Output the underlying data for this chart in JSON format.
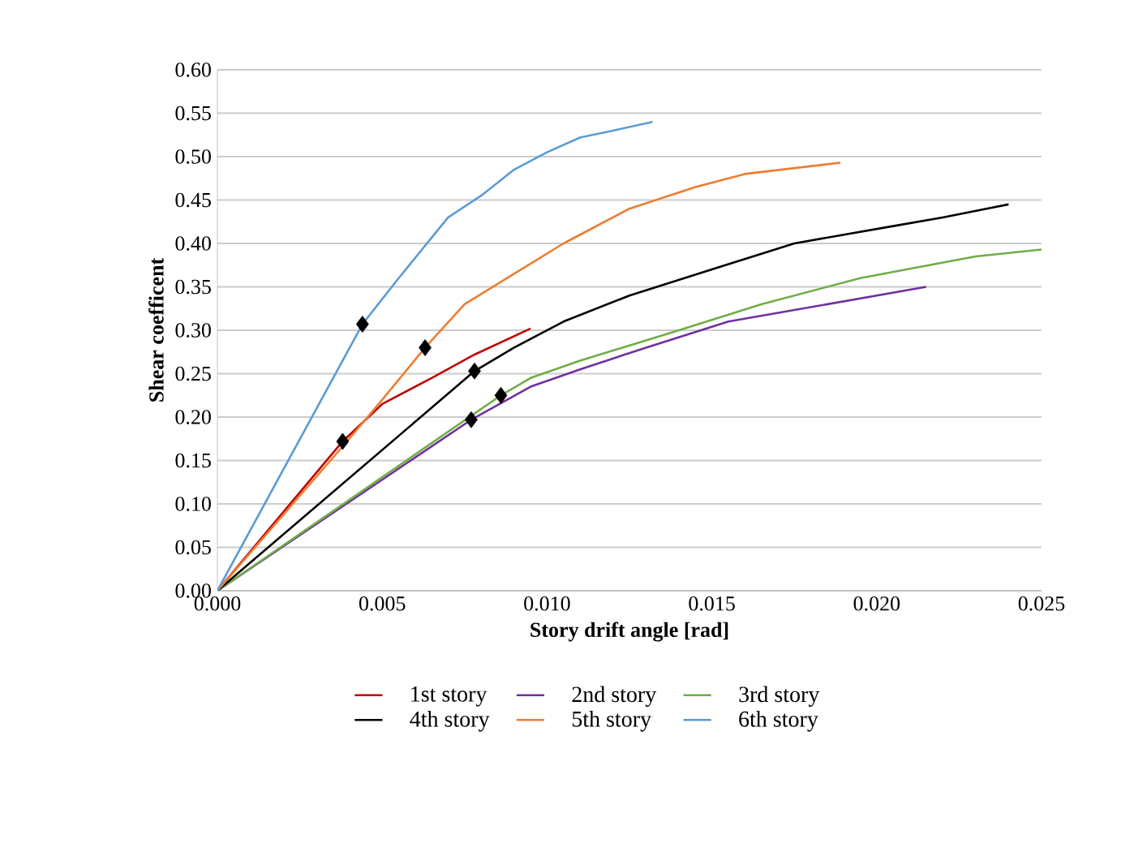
{
  "chart_data": {
    "type": "line",
    "xlabel": "Story drift angle [rad]",
    "ylabel": "Shear coefficent",
    "xlim": [
      0,
      0.025
    ],
    "ylim": [
      0,
      0.6
    ],
    "xticks": [
      {
        "value": 0,
        "label": "0.000"
      },
      {
        "value": 0.005,
        "label": "0.005"
      },
      {
        "value": 0.01,
        "label": "0.010"
      },
      {
        "value": 0.015,
        "label": "0.015"
      },
      {
        "value": 0.02,
        "label": "0.020"
      },
      {
        "value": 0.025,
        "label": "0.025"
      }
    ],
    "yticks": [
      {
        "value": 0,
        "label": "0.00"
      },
      {
        "value": 0.05,
        "label": "0.05"
      },
      {
        "value": 0.1,
        "label": "0.10"
      },
      {
        "value": 0.15,
        "label": "0.15"
      },
      {
        "value": 0.2,
        "label": "0.20"
      },
      {
        "value": 0.25,
        "label": "0.25"
      },
      {
        "value": 0.3,
        "label": "0.30"
      },
      {
        "value": 0.35,
        "label": "0.35"
      },
      {
        "value": 0.4,
        "label": "0.40"
      },
      {
        "value": 0.45,
        "label": "0.45"
      },
      {
        "value": 0.5,
        "label": "0.50"
      },
      {
        "value": 0.55,
        "label": "0.55"
      },
      {
        "value": 0.6,
        "label": "0.60"
      }
    ],
    "grid": "y",
    "legend": "bottom",
    "marker": "none",
    "line_style": "solid",
    "series": [
      {
        "name": "1st story",
        "color": "#c00000",
        "x": [
          0,
          0.0038,
          0.005,
          0.0065,
          0.0078,
          0.0095
        ],
        "values": [
          0,
          0.172,
          0.215,
          0.245,
          0.272,
          0.302
        ]
      },
      {
        "name": "2nd story",
        "color": "#7030a0",
        "x": [
          0,
          0.0077,
          0.0095,
          0.011,
          0.013,
          0.0155,
          0.0185,
          0.0215
        ],
        "values": [
          0,
          0.197,
          0.235,
          0.255,
          0.28,
          0.31,
          0.33,
          0.35
        ]
      },
      {
        "name": "3rd story",
        "color": "#70ad47",
        "x": [
          0,
          0.0086,
          0.0095,
          0.011,
          0.014,
          0.0165,
          0.0195,
          0.023,
          0.025
        ],
        "values": [
          0,
          0.225,
          0.245,
          0.265,
          0.3,
          0.33,
          0.36,
          0.385,
          0.393
        ]
      },
      {
        "name": "4th story",
        "color": "#000000",
        "x": [
          0,
          0.0078,
          0.009,
          0.0105,
          0.0125,
          0.015,
          0.0175,
          0.0205,
          0.022,
          0.024
        ],
        "values": [
          0,
          0.253,
          0.28,
          0.31,
          0.34,
          0.37,
          0.4,
          0.42,
          0.43,
          0.445
        ]
      },
      {
        "name": "5th story",
        "color": "#ed7d31",
        "x": [
          0,
          0.004,
          0.005,
          0.0063,
          0.0075,
          0.009,
          0.0105,
          0.0125,
          0.0145,
          0.016,
          0.0189
        ],
        "values": [
          0,
          0.175,
          0.22,
          0.28,
          0.33,
          0.365,
          0.4,
          0.44,
          0.465,
          0.48,
          0.493
        ]
      },
      {
        "name": "6th story",
        "color": "#5b9bd5",
        "x": [
          0,
          0.0044,
          0.0055,
          0.007,
          0.008,
          0.009,
          0.01,
          0.011,
          0.012,
          0.0132
        ],
        "values": [
          0,
          0.307,
          0.36,
          0.43,
          0.455,
          0.485,
          0.505,
          0.522,
          0.53,
          0.54
        ]
      },
      {
        "type": "scatter",
        "marker": "diamond",
        "color": "#000000",
        "x": [
          0.0038,
          0.0044,
          0.0063,
          0.0077,
          0.0078,
          0.0086
        ],
        "values": [
          0.172,
          0.307,
          0.28,
          0.197,
          0.253,
          0.225
        ]
      }
    ]
  }
}
